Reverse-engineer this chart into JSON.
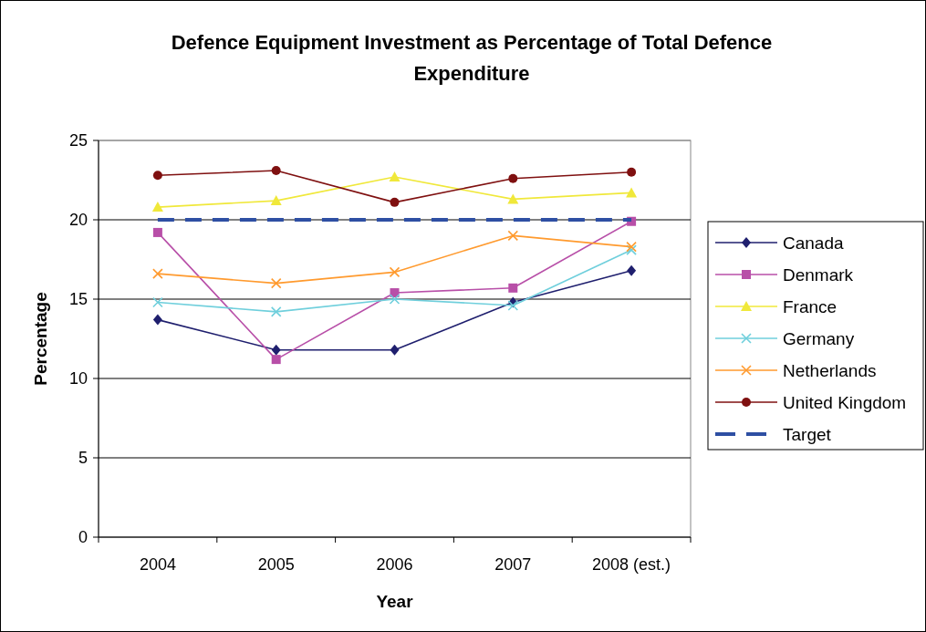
{
  "chart_data": {
    "type": "line",
    "title": "Defence Equipment Investment as Percentage of Total Defence Expenditure",
    "xlabel": "Year",
    "ylabel": "Percentage",
    "categories": [
      "2004",
      "2005",
      "2006",
      "2007",
      "2008 (est.)"
    ],
    "series": [
      {
        "name": "Canada",
        "color": "#1f1f6e",
        "marker": "diamond",
        "values": [
          13.7,
          11.8,
          11.8,
          14.8,
          16.8
        ]
      },
      {
        "name": "Denmark",
        "color": "#b84fa8",
        "marker": "square",
        "values": [
          19.2,
          11.2,
          15.4,
          15.7,
          19.9
        ]
      },
      {
        "name": "France",
        "color": "#f0e83a",
        "marker": "triangle",
        "values": [
          20.8,
          21.2,
          22.7,
          21.3,
          21.7
        ]
      },
      {
        "name": "Germany",
        "color": "#6fcfdc",
        "marker": "cross",
        "values": [
          14.8,
          14.2,
          15.0,
          14.6,
          18.1
        ]
      },
      {
        "name": "Netherlands",
        "color": "#ff9a2e",
        "marker": "cross",
        "values": [
          16.6,
          16.0,
          16.7,
          19.0,
          18.3
        ]
      },
      {
        "name": "United Kingdom",
        "color": "#7f1010",
        "marker": "circle",
        "values": [
          22.8,
          23.1,
          21.1,
          22.6,
          23.0
        ]
      },
      {
        "name": "Target",
        "color": "#2e4fa3",
        "marker": "none",
        "line_style": "dashed",
        "values": [
          20,
          20,
          20,
          20,
          20
        ]
      }
    ],
    "ylim": [
      0,
      25
    ],
    "yticks": [
      0,
      5,
      10,
      15,
      20,
      25
    ],
    "grid": "y",
    "legend": "right"
  }
}
